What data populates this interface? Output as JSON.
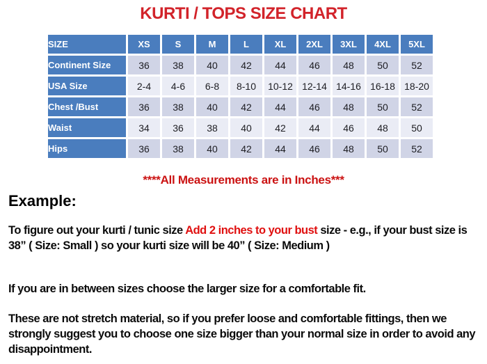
{
  "title": "KURTI / TOPS SIZE CHART",
  "table": {
    "header": [
      "SIZE",
      "XS",
      "S",
      "M",
      "L",
      "XL",
      "2XL",
      "3XL",
      "4XL",
      "5XL"
    ],
    "rows": [
      {
        "label": "Continent Size",
        "values": [
          "36",
          "38",
          "40",
          "42",
          "44",
          "46",
          "48",
          "50",
          "52"
        ]
      },
      {
        "label": "USA Size",
        "values": [
          "2-4",
          "4-6",
          "6-8",
          "8-10",
          "10-12",
          "12-14",
          "14-16",
          "16-18",
          "18-20"
        ]
      },
      {
        "label": "Chest /Bust",
        "values": [
          "36",
          "38",
          "40",
          "42",
          "44",
          "46",
          "48",
          "50",
          "52"
        ]
      },
      {
        "label": "Waist",
        "values": [
          "34",
          "36",
          "38",
          "40",
          "42",
          "44",
          "46",
          "48",
          "50"
        ]
      },
      {
        "label": "Hips",
        "values": [
          "36",
          "38",
          "40",
          "42",
          "44",
          "46",
          "48",
          "50",
          "52"
        ]
      }
    ]
  },
  "note": "****All Measurements are in Inches***",
  "example_heading": "Example:",
  "paragraphs": {
    "p1_before": "To figure out your kurti / tunic size ",
    "p1_red": "Add 2 inches to your bust",
    "p1_after": " size - e.g., if your bust size is 38” ( Size: Small ) so your kurti size will be 40” ( Size: Medium )",
    "p2": "If you are in between sizes choose the larger size for a comfortable fit.",
    "p3": "These are not stretch material, so if you prefer loose and comfortable fittings, then we strongly suggest you to choose one size bigger than your normal size in order to avoid any disappointment."
  },
  "colors": {
    "title_red": "#d2232a",
    "note_red": "#cb1212",
    "highlight_red": "#e01010",
    "header_blue": "#4a7dbe",
    "band_dark": "#d0d4e6",
    "band_light": "#eaecf5"
  }
}
